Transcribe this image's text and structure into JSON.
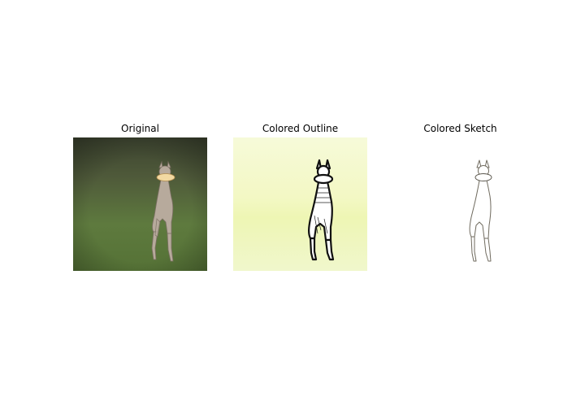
{
  "figure": {
    "panels": [
      {
        "title": "Original",
        "image": "photo of a slender greyhound-like dog standing on a green grass field, holding a frisbee in its mouth"
      },
      {
        "title": "Colored Outline",
        "image": "thick black outline of the dog over a pale yellow-green gradient background"
      },
      {
        "title": "Colored Sketch",
        "image": "thin brownish-grey line sketch of the dog on a white background"
      }
    ]
  }
}
